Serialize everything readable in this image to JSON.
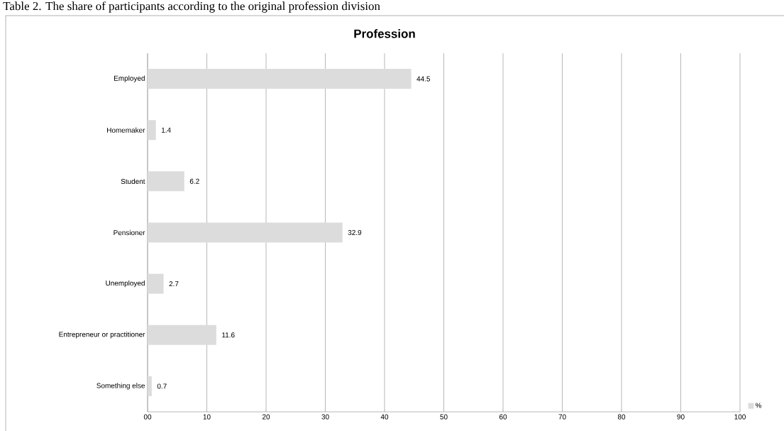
{
  "chart_data": {
    "type": "bar",
    "orientation": "horizontal",
    "title": "Profession",
    "annotations": [
      "Table 2. The share of participants according to the original profession division"
    ],
    "categories": [
      "Employed",
      "Homemaker",
      "Student",
      "Pensioner",
      "Unemployed",
      "Entrepreneur or practitioner",
      "Something else"
    ],
    "series": [
      {
        "name": "%",
        "color": "#dcdcdc",
        "values": [
          44.5,
          1.4,
          6.2,
          32.9,
          2.7,
          11.6,
          0.7
        ]
      }
    ],
    "xlim": [
      0,
      100
    ],
    "xticks": [
      {
        "value": 0,
        "label": "00"
      },
      10,
      20,
      30,
      40,
      50,
      60,
      70,
      80,
      90,
      100
    ],
    "grid": "x",
    "legend": "bottom right",
    "data_labels": true
  }
}
